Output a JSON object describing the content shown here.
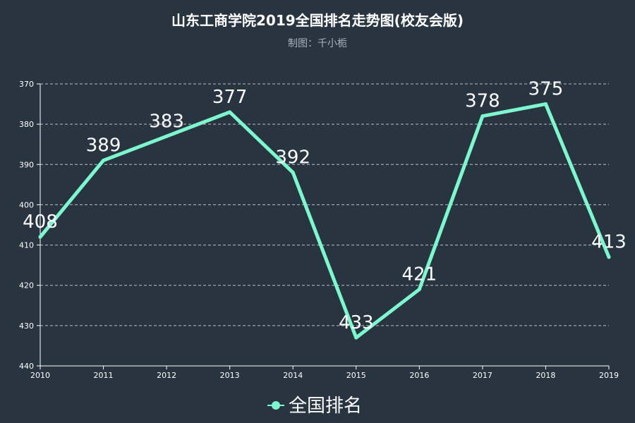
{
  "chart_data": {
    "type": "line",
    "title": "山东工商学院2019全国排名走势图(校友会版)",
    "subtitle": "制图：千小栀",
    "categories": [
      "2010",
      "2011",
      "2012",
      "2013",
      "2014",
      "2015",
      "2016",
      "2017",
      "2018",
      "2019"
    ],
    "series": [
      {
        "name": "全国排名",
        "color": "#7ef7cf",
        "values": [
          408,
          389,
          383,
          377,
          392,
          433,
          421,
          378,
          375,
          413
        ]
      }
    ],
    "y_axis": {
      "inverse": true,
      "min": 370,
      "max": 440,
      "ticks": [
        370,
        380,
        390,
        400,
        410,
        420,
        430,
        440
      ]
    },
    "grid": true,
    "legend_position": "bottom-center",
    "colors": {
      "background": "#283541",
      "title": "#ffffff",
      "subtitle": "#aab2bb",
      "axis": "#ffffff",
      "grid": "#b9c0c7",
      "label": "#ffffff"
    }
  }
}
